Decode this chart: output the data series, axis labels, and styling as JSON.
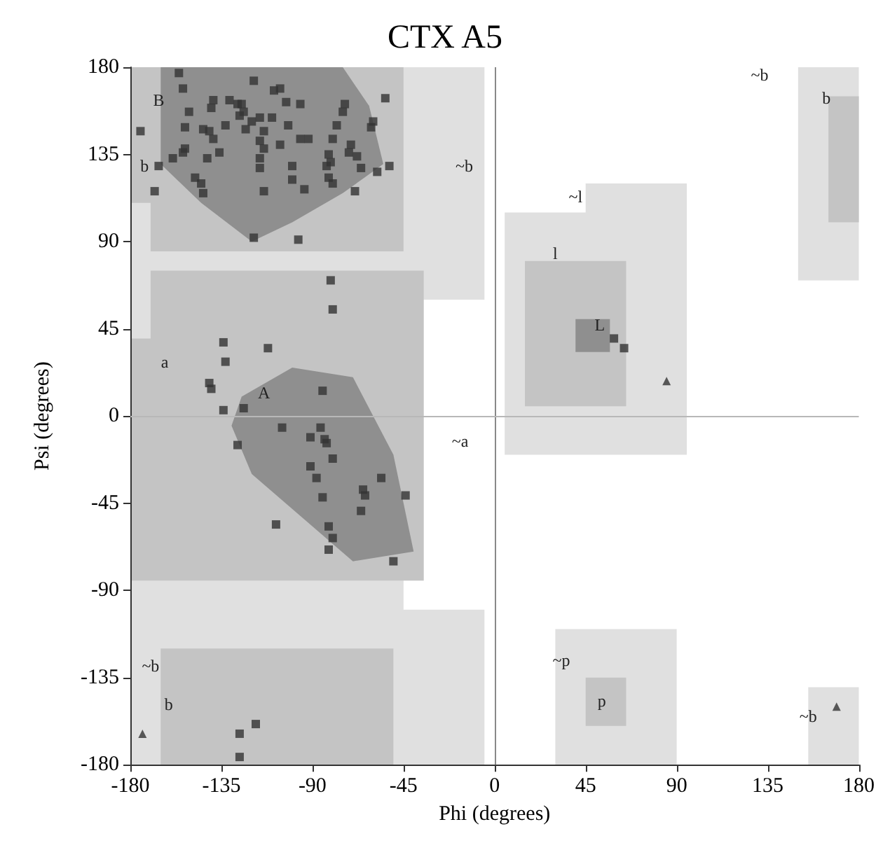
{
  "chart_data": {
    "type": "scatter",
    "title": "CTX A5",
    "xlabel": "Phi (degrees)",
    "ylabel": "Psi (degrees)",
    "xlim": [
      -180,
      180
    ],
    "xticks": [
      -180,
      -135,
      -90,
      -45,
      0,
      45,
      90,
      135,
      180
    ],
    "ylim": [
      -180,
      180
    ],
    "yticks": [
      -180,
      -135,
      -90,
      -45,
      0,
      45,
      90,
      135,
      180
    ],
    "grid": false,
    "series": [
      {
        "color": "#333333",
        "marker": "square",
        "x": [
          -156,
          -154,
          -119,
          -109,
          -106,
          -103,
          -96,
          -139,
          -140,
          -131,
          -127,
          -125,
          -124,
          -126,
          -120,
          -116,
          -110,
          -151,
          -175,
          -153,
          -144,
          -141,
          -139,
          -133,
          -123,
          -114,
          -102,
          -96,
          -92,
          -116,
          -114,
          -106,
          -74,
          -75,
          -78,
          -80,
          -71,
          -72,
          -61,
          -60,
          -54,
          -153,
          -154,
          -159,
          -166,
          -142,
          -136,
          -116,
          -116,
          -100,
          -82,
          -81,
          -83,
          -68,
          -66,
          -58,
          -52,
          -148,
          -145,
          -144,
          -168,
          -114,
          -100,
          -94,
          -82,
          -80,
          -69,
          -119,
          -97,
          -81,
          -80,
          -134,
          -133,
          -112,
          -141,
          -140,
          -134,
          -124,
          -85,
          -86,
          -105,
          -127,
          -91,
          -84,
          -83,
          -80,
          -91,
          -88,
          -56,
          -65,
          -64,
          -85,
          -44,
          -66,
          -108,
          -82,
          -80,
          -82,
          -50,
          -118,
          -126,
          -126,
          59,
          64
        ],
        "values": [
          177,
          169,
          173,
          168,
          169,
          162,
          161,
          163,
          159,
          163,
          161,
          161,
          157,
          155,
          152,
          154,
          154,
          157,
          147,
          149,
          148,
          147,
          143,
          150,
          148,
          147,
          150,
          143,
          143,
          142,
          138,
          140,
          161,
          157,
          150,
          143,
          140,
          136,
          149,
          152,
          164,
          138,
          136,
          133,
          129,
          133,
          136,
          133,
          128,
          129,
          135,
          131,
          129,
          134,
          128,
          126,
          129,
          123,
          120,
          115,
          116,
          116,
          122,
          117,
          123,
          120,
          116,
          92,
          91,
          70,
          55,
          38,
          28,
          35,
          17,
          14,
          3,
          4,
          13,
          -6,
          -6,
          -15,
          -11,
          -12,
          -14,
          -22,
          -26,
          -32,
          -32,
          -38,
          -41,
          -42,
          -41,
          -49,
          -56,
          -57,
          -63,
          -69,
          -75,
          -159,
          -164,
          -176,
          40,
          35
        ]
      },
      {
        "color": "#333333",
        "marker": "triangle",
        "x": [
          -174,
          85,
          169
        ],
        "values": [
          -164,
          18,
          -150
        ]
      }
    ],
    "ref_lines": [
      {
        "axis": "x",
        "value": 0,
        "color": "#888888"
      },
      {
        "axis": "y",
        "value": 0,
        "color": "#b8b8b8"
      }
    ],
    "annotations": [
      "B",
      "b",
      "~b",
      "a",
      "A",
      "~a",
      "~b",
      "b",
      "~l",
      "l",
      "L",
      "~b",
      "b",
      "~p",
      "p",
      "~b"
    ]
  }
}
